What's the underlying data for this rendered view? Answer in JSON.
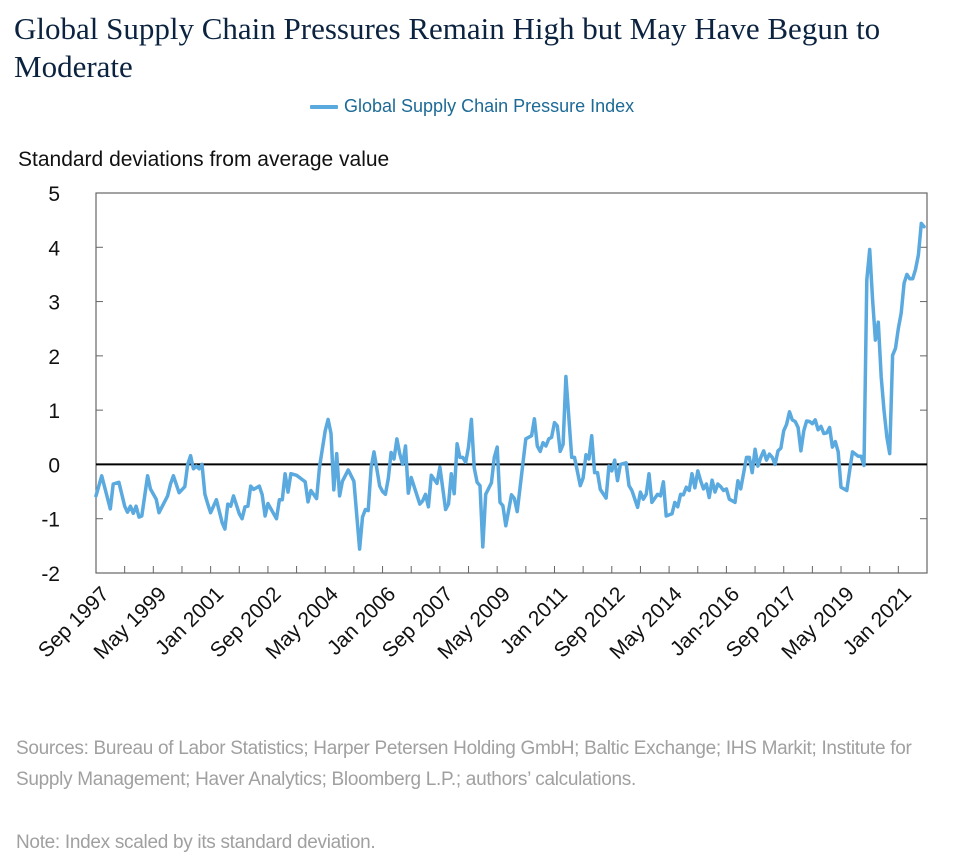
{
  "title": "Global Supply Chain Pressures Remain High but May Have Begun to Moderate",
  "footer": {
    "sources": "Sources: Bureau of Labor Statistics; Harper Petersen Holding GmbH; Baltic Exchange; IHS Markit; Institute for Supply Management; Haver Analytics; Bloomberg L.P.; authors’ calculations.",
    "note": "Note: Index scaled by its standard deviation."
  },
  "chart_data": {
    "type": "line",
    "title": "Global Supply Chain Pressures Remain High but May Have Begun to Moderate",
    "ylabel": "Standard deviations from average value",
    "xlabel": "",
    "ylim": [
      -2,
      5
    ],
    "yticks": [
      "5",
      "4",
      "3",
      "2",
      "1",
      "0",
      "-1",
      "-2"
    ],
    "xtick_labels": [
      "Sep 1997",
      "May 1999",
      "Jan 2001",
      "Sep 2002",
      "May 2004",
      "Jan 2006",
      "Sep 2007",
      "May 2009",
      "Jan 2011",
      "Sep 2012",
      "May 2014",
      "Jan-2016",
      "Sep 2017",
      "May 2019",
      "Jan 2021"
    ],
    "xtick_dates": [
      "1997-09",
      "1999-05",
      "2001-01",
      "2002-09",
      "2004-05",
      "2006-01",
      "2007-09",
      "2009-05",
      "2011-01",
      "2012-09",
      "2014-05",
      "2016-01",
      "2017-09",
      "2019-05",
      "2021-01"
    ],
    "xlim": [
      "1997-09",
      "2021-11"
    ],
    "reference_line": 0,
    "grid": false,
    "legend_position": "top-center",
    "colors": {
      "series": "#5aa9df",
      "zero_line": "#000000",
      "title": "#0c2340",
      "legend_text": "#1d6a96",
      "footer": "#a0a0a0"
    },
    "series": [
      {
        "name": "Global Supply Chain Pressure Index",
        "x": [
          "1997-09",
          "1997-11",
          "1998-02",
          "1998-03",
          "1998-05",
          "1998-07",
          "1998-08",
          "1998-09",
          "1998-10",
          "1998-11",
          "1998-12",
          "1999-01",
          "1999-03",
          "1999-04",
          "1999-06",
          "1999-07",
          "1999-10",
          "1999-11",
          "1999-12",
          "2000-02",
          "2000-04",
          "2000-05",
          "2000-06",
          "2000-07",
          "2000-08",
          "2000-09",
          "2000-10",
          "2000-11",
          "2000-12",
          "2001-01",
          "2001-03",
          "2001-05",
          "2001-06",
          "2001-07",
          "2001-08",
          "2001-09",
          "2001-11",
          "2001-12",
          "2002-01",
          "2002-02",
          "2002-03",
          "2002-04",
          "2002-06",
          "2002-07",
          "2002-08",
          "2002-09",
          "2002-11",
          "2002-12",
          "2003-01",
          "2003-02",
          "2003-03",
          "2003-04",
          "2003-05",
          "2003-07",
          "2003-09",
          "2003-10",
          "2003-11",
          "2003-12",
          "2004-02",
          "2004-03",
          "2004-05",
          "2004-06",
          "2004-07",
          "2004-08",
          "2004-09",
          "2004-10",
          "2004-11",
          "2005-01",
          "2005-03",
          "2005-05",
          "2005-06",
          "2005-07",
          "2005-08",
          "2005-09",
          "2005-10",
          "2005-12",
          "2006-01",
          "2006-02",
          "2006-03",
          "2006-04",
          "2006-05",
          "2006-06",
          "2006-07",
          "2006-08",
          "2006-09",
          "2006-10",
          "2006-11",
          "2007-02",
          "2007-03",
          "2007-04",
          "2007-05",
          "2007-06",
          "2007-08",
          "2007-09",
          "2007-11",
          "2007-12",
          "2008-01",
          "2008-02",
          "2008-03",
          "2008-04",
          "2008-05",
          "2008-06",
          "2008-07",
          "2008-08",
          "2008-09",
          "2008-10",
          "2008-11",
          "2008-12",
          "2009-01",
          "2009-03",
          "2009-04",
          "2009-05",
          "2009-06",
          "2009-07",
          "2009-08",
          "2009-10",
          "2009-11",
          "2009-12",
          "2010-03",
          "2010-05",
          "2010-06",
          "2010-07",
          "2010-08",
          "2010-09",
          "2010-10",
          "2010-11",
          "2010-12",
          "2011-01",
          "2011-02",
          "2011-03",
          "2011-04",
          "2011-05",
          "2011-07",
          "2011-08",
          "2011-10",
          "2011-11",
          "2011-12",
          "2012-01",
          "2012-02",
          "2012-03",
          "2012-04",
          "2012-05",
          "2012-07",
          "2012-08",
          "2012-09",
          "2012-10",
          "2012-11",
          "2012-12",
          "2013-02",
          "2013-03",
          "2013-04",
          "2013-06",
          "2013-07",
          "2013-08",
          "2013-09",
          "2013-10",
          "2013-11",
          "2014-01",
          "2014-02",
          "2014-03",
          "2014-04",
          "2014-06",
          "2014-07",
          "2014-08",
          "2014-09",
          "2014-10",
          "2014-11",
          "2014-12",
          "2015-01",
          "2015-02",
          "2015-03",
          "2015-04",
          "2015-05",
          "2015-06",
          "2015-07",
          "2015-08",
          "2015-09",
          "2015-10",
          "2015-11",
          "2015-12",
          "2016-01",
          "2016-02",
          "2016-04",
          "2016-05",
          "2016-06",
          "2016-08",
          "2016-09",
          "2016-10",
          "2016-11",
          "2016-12",
          "2017-01",
          "2017-02",
          "2017-03",
          "2017-04",
          "2017-05",
          "2017-06",
          "2017-07",
          "2017-08",
          "2017-09",
          "2017-10",
          "2017-11",
          "2017-12",
          "2018-01",
          "2018-02",
          "2018-03",
          "2018-04",
          "2018-05",
          "2018-06",
          "2018-07",
          "2018-08",
          "2018-09",
          "2018-10",
          "2018-11",
          "2018-12",
          "2019-01",
          "2019-02",
          "2019-03",
          "2019-04",
          "2019-05",
          "2019-07",
          "2019-08",
          "2019-09",
          "2019-11",
          "2019-12",
          "2020-01",
          "2020-02",
          "2020-03",
          "2020-04",
          "2020-05",
          "2020-06",
          "2020-07",
          "2020-08",
          "2020-09",
          "2020-10",
          "2020-11",
          "2020-12",
          "2021-01",
          "2021-02",
          "2021-03",
          "2021-04",
          "2021-05",
          "2021-06",
          "2021-07",
          "2021-08",
          "2021-09",
          "2021-10"
        ],
        "y": [
          -0.58,
          -0.21,
          -0.82,
          -0.36,
          -0.33,
          -0.77,
          -0.88,
          -0.77,
          -0.9,
          -0.77,
          -0.97,
          -0.95,
          -0.21,
          -0.45,
          -0.64,
          -0.89,
          -0.58,
          -0.36,
          -0.21,
          -0.52,
          -0.41,
          0,
          0.16,
          -0.08,
          -0.03,
          -0.08,
          0,
          -0.55,
          -0.73,
          -0.89,
          -0.65,
          -1.07,
          -1.19,
          -0.73,
          -0.77,
          -0.58,
          -0.91,
          -1.0,
          -0.78,
          -0.77,
          -0.4,
          -0.46,
          -0.4,
          -0.56,
          -0.95,
          -0.72,
          -0.91,
          -1.0,
          -0.65,
          -0.65,
          -0.17,
          -0.51,
          -0.17,
          -0.2,
          -0.28,
          -0.32,
          -0.69,
          -0.48,
          -0.63,
          -0.05,
          0.62,
          0.83,
          0.57,
          -0.47,
          0.2,
          -0.58,
          -0.31,
          -0.1,
          -0.31,
          -1.56,
          -0.97,
          -0.83,
          -0.85,
          -0.06,
          0.23,
          -0.4,
          -0.5,
          -0.55,
          -0.26,
          0.22,
          0.1,
          0.47,
          0.2,
          0.0,
          0.34,
          -0.53,
          -0.24,
          -0.73,
          -0.67,
          -0.55,
          -0.78,
          -0.2,
          -0.35,
          -0.05,
          -0.83,
          -0.73,
          -0.17,
          -0.54,
          0.38,
          0.13,
          0.13,
          0.04,
          0.32,
          0.83,
          -0.06,
          -0.33,
          -0.39,
          -1.52,
          -0.55,
          -0.34,
          0.13,
          0.32,
          -0.7,
          -0.76,
          -1.13,
          -0.56,
          -0.63,
          -0.87,
          0.47,
          0.53,
          0.84,
          0.34,
          0.24,
          0.4,
          0.34,
          0.47,
          0.5,
          0.77,
          0.71,
          0.24,
          0.37,
          1.62,
          0.13,
          0.13,
          -0.39,
          -0.25,
          0.18,
          0.1,
          0.53,
          -0.15,
          -0.15,
          -0.46,
          -0.62,
          -0.03,
          -0.12,
          0.08,
          -0.3,
          0,
          0.03,
          -0.39,
          -0.48,
          -0.79,
          -0.51,
          -0.64,
          -0.55,
          -0.17,
          -0.7,
          -0.55,
          -0.58,
          -0.32,
          -0.95,
          -0.91,
          -0.7,
          -0.78,
          -0.55,
          -0.56,
          -0.42,
          -0.48,
          -0.17,
          -0.43,
          -0.12,
          -0.3,
          -0.45,
          -0.36,
          -0.61,
          -0.29,
          -0.51,
          -0.36,
          -0.41,
          -0.48,
          -0.45,
          -0.64,
          -0.7,
          -0.3,
          -0.45,
          0.13,
          0.13,
          -0.15,
          0.28,
          -0.03,
          0.13,
          0.25,
          0.08,
          0.19,
          0.13,
          0,
          0.25,
          0.3,
          0.62,
          0.74,
          0.97,
          0.82,
          0.79,
          0.68,
          0.25,
          0.62,
          0.8,
          0.79,
          0.75,
          0.82,
          0.64,
          0.7,
          0.57,
          0.58,
          0.68,
          0.32,
          0.42,
          0.23,
          -0.42,
          -0.48,
          -0.12,
          0.23,
          0.15,
          0.15,
          -0.02,
          3.4,
          3.96,
          3.03,
          2.29,
          2.62,
          1.61,
          1.0,
          0.5,
          0.2,
          2.01,
          2.14,
          2.5,
          2.79,
          3.34,
          3.5,
          3.42,
          3.42,
          3.59,
          3.86,
          4.44,
          4.38
        ]
      }
    ]
  }
}
